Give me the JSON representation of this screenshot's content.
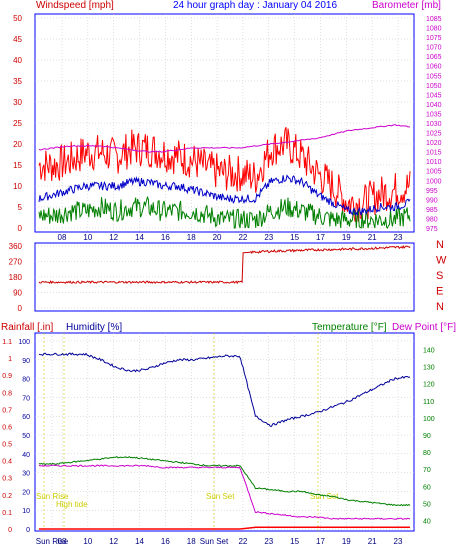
{
  "header": {
    "left_label": "Windspeed [mph]",
    "title": "24 hour graph day : January 04 2016",
    "right_label": "Barometer [mb]"
  },
  "bottom_header": {
    "rainfall_label": "Rainfall [.in]",
    "humidity_label": "Humidity [%]",
    "temperature_label": "Temperature [°F]",
    "dewpoint_label": "Dew Point [°F]"
  },
  "x_ticks_top": [
    "08",
    "10",
    "12",
    "14",
    "16",
    "18",
    "20",
    "22",
    "23",
    "15",
    "17",
    "19",
    "21",
    "23"
  ],
  "x_ticks_bottom": [
    "Sun Rise",
    "08",
    "10",
    "12",
    "14",
    "16",
    "18",
    "Sun Set",
    "22",
    "23",
    "15",
    "17",
    "19",
    "21",
    "23"
  ],
  "wind_dir_labels": [
    "N",
    "W",
    "S",
    "E",
    "N"
  ],
  "events": {
    "sun_rise": "Sun Rise",
    "high_tide": "High tide",
    "sun_set_1": "Sun Set",
    "sun_set_2": "Sun Set"
  },
  "colors": {
    "frame": "#0000ff",
    "grid": "#c0c0c0",
    "gust": "#ff0000",
    "avg_wind": "#0000c8",
    "wind_min": "#008000",
    "barometer": "#cc00cc",
    "direction": "#cc0000",
    "humidity": "#000099",
    "temperature": "#008000",
    "dewpoint": "#cc00cc",
    "rain": "#ff0000",
    "event": "#cccc00"
  },
  "chart_data": [
    {
      "type": "line",
      "title": "24 hour graph day : January 04 2016",
      "x_ticks": [
        "08",
        "10",
        "12",
        "14",
        "16",
        "18",
        "20",
        "22",
        "23",
        "15",
        "17",
        "19",
        "21",
        "23"
      ],
      "left_axis": {
        "label": "Windspeed [mph]",
        "ylim": [
          0,
          50
        ],
        "ticks": [
          0,
          5,
          10,
          15,
          20,
          25,
          30,
          35,
          40,
          45,
          50
        ]
      },
      "right_axis": {
        "label": "Barometer [mb]",
        "ylim": [
          975,
          1085
        ],
        "ticks": [
          975,
          980,
          985,
          990,
          995,
          1000,
          1005,
          1010,
          1015,
          1020,
          1025,
          1030,
          1035,
          1040,
          1045,
          1050,
          1055,
          1060,
          1065,
          1070,
          1075,
          1080,
          1085
        ]
      },
      "series": [
        {
          "name": "Gust",
          "axis": "left",
          "values": [
            15,
            15,
            16,
            18,
            18,
            17,
            19,
            19,
            18,
            17,
            16,
            14,
            13,
            13,
            12,
            19,
            20,
            17,
            13,
            10,
            6,
            6,
            8,
            9,
            10
          ]
        },
        {
          "name": "Average",
          "axis": "left",
          "values": [
            7,
            8,
            9,
            10,
            10,
            10,
            11,
            11,
            10,
            10,
            9,
            8,
            7,
            7,
            7,
            11,
            12,
            11,
            8,
            6,
            4,
            4,
            5,
            5,
            6
          ]
        },
        {
          "name": "Minimum",
          "axis": "left",
          "values": [
            3,
            3,
            4,
            4,
            5,
            4,
            5,
            5,
            4,
            4,
            4,
            3,
            2,
            2,
            2,
            4,
            5,
            4,
            3,
            2,
            2,
            2,
            2,
            2,
            3
          ]
        },
        {
          "name": "Barometer",
          "axis": "right",
          "values": [
            1016,
            1017,
            1018,
            1018,
            1018,
            1017,
            1016,
            1015,
            1015,
            1016,
            1017,
            1017,
            1017,
            1017,
            1018,
            1019,
            1020,
            1021,
            1022,
            1024,
            1026,
            1027,
            1028,
            1029,
            1028
          ]
        }
      ]
    },
    {
      "type": "line",
      "y_ticks": [
        0,
        90,
        180,
        270,
        360
      ],
      "ylim": [
        0,
        360
      ],
      "direction_labels": [
        "N",
        "W",
        "S",
        "E",
        "N"
      ],
      "series": [
        {
          "name": "Wind direction",
          "values": [
            150,
            148,
            152,
            150,
            155,
            152,
            150,
            148,
            150,
            152,
            150,
            148,
            150,
            320,
            325,
            330,
            332,
            335,
            338,
            340,
            342,
            345,
            348,
            352,
            356
          ]
        }
      ]
    },
    {
      "type": "line",
      "left_axis": {
        "label": "Rainfall [.in] / Humidity [%]",
        "rain_ticks": [
          0,
          0.1,
          0.2,
          0.3,
          0.4,
          0.5,
          0.6,
          0.7,
          0.8,
          0.9,
          1,
          1.1
        ],
        "humidity_ticks": [
          0,
          10,
          20,
          30,
          40,
          50,
          60,
          70,
          80,
          90,
          100
        ]
      },
      "right_axis": {
        "label": "Temperature [°F] / Dew Point [°F]",
        "ticks": [
          40,
          50,
          60,
          70,
          80,
          90,
          100,
          110,
          120,
          130,
          140
        ],
        "ylim": [
          35,
          145
        ]
      },
      "series": [
        {
          "name": "Humidity",
          "axis": "left",
          "values": [
            93,
            93,
            93,
            93,
            90,
            86,
            84,
            85,
            88,
            90,
            90,
            91,
            92,
            92,
            60,
            55,
            58,
            60,
            62,
            65,
            68,
            72,
            76,
            80,
            81
          ]
        },
        {
          "name": "Temperature",
          "axis": "right",
          "values": [
            73,
            73,
            74,
            75,
            76,
            77,
            77,
            76,
            75,
            74,
            73,
            72,
            72,
            72,
            59,
            58,
            57,
            57,
            55,
            54,
            52,
            51,
            50,
            49,
            49
          ]
        },
        {
          "name": "Dew Point",
          "axis": "right",
          "values": [
            72,
            72,
            72,
            72,
            72,
            72,
            72,
            72,
            71,
            71,
            71,
            71,
            71,
            71,
            45,
            44,
            43,
            42,
            42,
            41,
            41,
            41,
            41,
            41,
            41
          ]
        },
        {
          "name": "Rainfall",
          "axis": "left",
          "values": [
            0,
            0,
            0,
            0,
            0,
            0,
            0,
            0,
            0,
            0,
            0,
            0,
            0,
            0,
            0.01,
            0.01,
            0.01,
            0.01,
            0.01,
            0.01,
            0.01,
            0.01,
            0.01,
            0.01,
            0.01
          ]
        }
      ]
    }
  ]
}
